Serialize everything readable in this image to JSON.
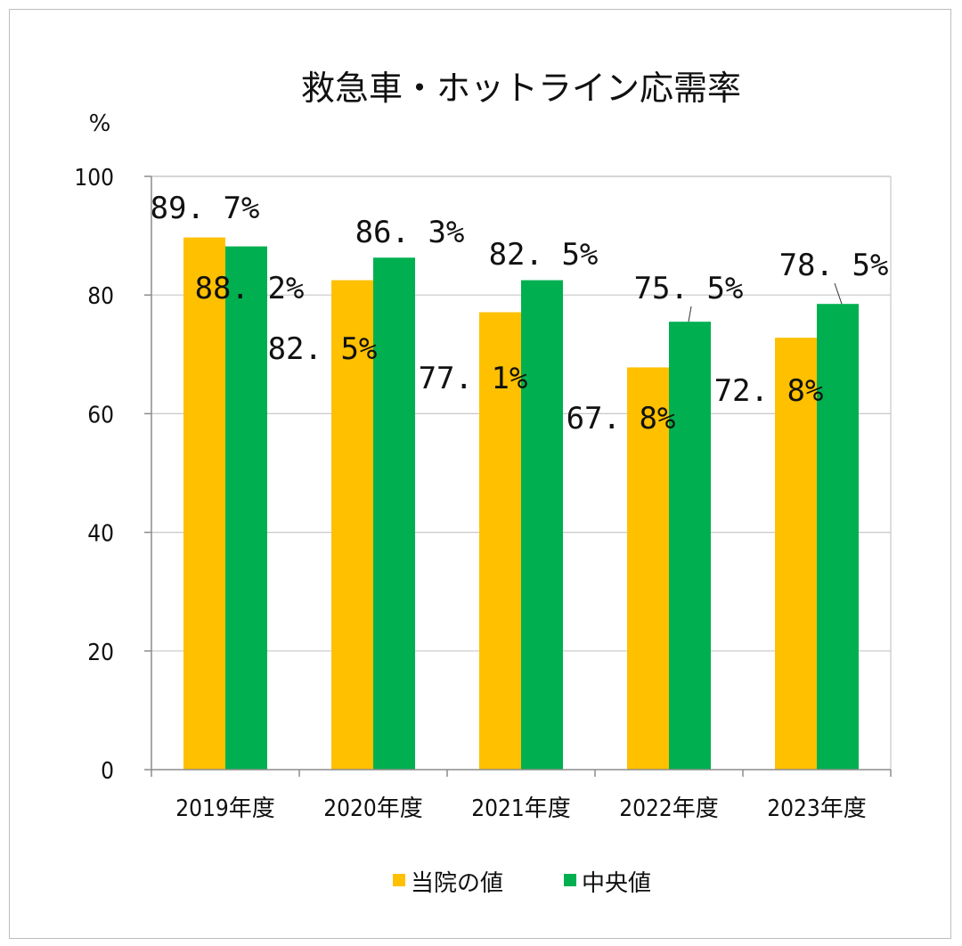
{
  "chart_data": {
    "type": "bar",
    "title": "救急車・ホットライン応需率",
    "ylabel": "%",
    "ylim": [
      0,
      100
    ],
    "yticks": [
      "0",
      "20",
      "40",
      "60",
      "80",
      "100"
    ],
    "categories": [
      "2019年度",
      "2020年度",
      "2021年度",
      "2022年度",
      "2023年度"
    ],
    "series": [
      {
        "name": "当院の値",
        "color": "#FFC000",
        "values": [
          89.7,
          82.5,
          77.1,
          67.8,
          72.8
        ],
        "labels": [
          "89. 7%",
          "82. 5%",
          "77. 1%",
          "67. 8%",
          "72. 8%"
        ]
      },
      {
        "name": "中央値",
        "color": "#00B050",
        "values": [
          88.2,
          86.3,
          82.5,
          75.5,
          78.5
        ],
        "labels": [
          "88. 2%",
          "86. 3%",
          "82. 5%",
          "75. 5%",
          "78. 5%"
        ]
      }
    ],
    "grid": true,
    "legend": "bottom"
  }
}
